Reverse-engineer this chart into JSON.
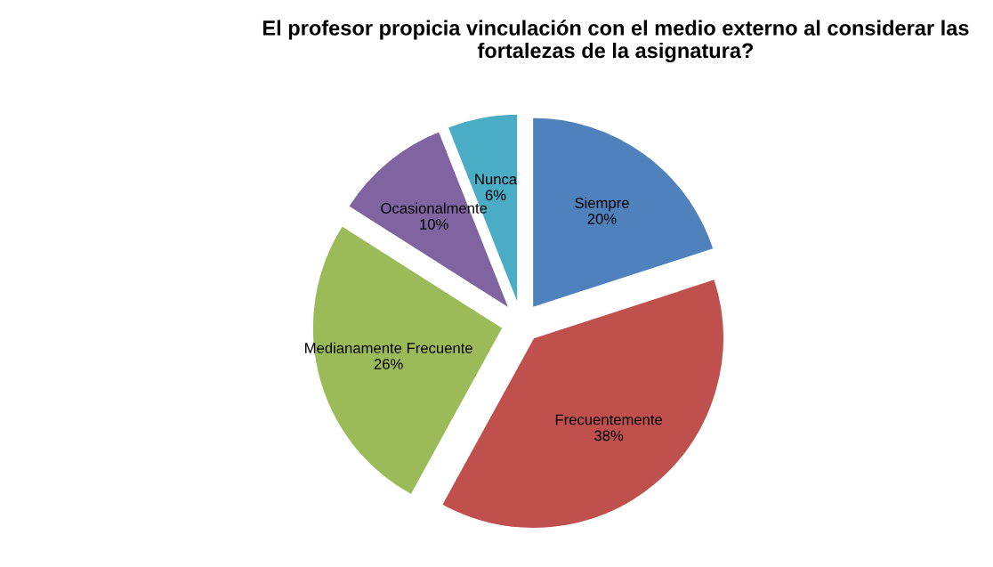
{
  "chart_data": {
    "type": "pie",
    "title": "El profesor propicia vinculación con el medio externo al considerar las fortalezas de la asignatura?",
    "categories": [
      "Siempre",
      "Frecuentemente",
      "Medianamente Frecuente",
      "Ocasionalmente",
      "Nunca"
    ],
    "values": [
      20,
      38,
      26,
      10,
      6
    ],
    "colors": [
      "#4f81bd",
      "#c0504d",
      "#9bbb59",
      "#8064a2",
      "#4bacc6"
    ],
    "value_labels": [
      "20%",
      "38%",
      "26%",
      "10%",
      "6%"
    ],
    "legend": false
  }
}
